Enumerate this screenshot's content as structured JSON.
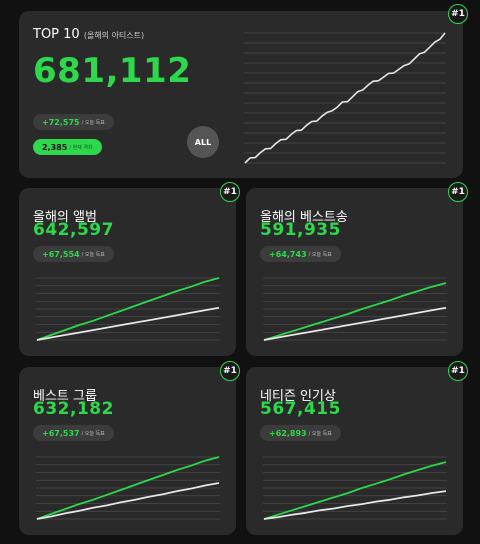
{
  "colors": {
    "accent": "#2ed84c",
    "card": "#2a2a2a",
    "background": "#111111",
    "line_white": "#e6e6e6"
  },
  "top": {
    "title": "TOP 10",
    "subtitle": "(올해의 아티스트)",
    "total": "681,112",
    "today_increase": "+72,575",
    "today_label": "/ 오늘 득표",
    "current_rank_value": "2,385",
    "current_rank_label": "/ 현재 격차",
    "all_button": "ALL",
    "rank_badge": "#1",
    "chart": {
      "type": "line",
      "series": [
        {
          "values": [
            0,
            3,
            5,
            8,
            10,
            12,
            15,
            17,
            19,
            22,
            24,
            26,
            29,
            31,
            33,
            36,
            38,
            41,
            43,
            46,
            48,
            51,
            54,
            57,
            60,
            62,
            64,
            66,
            68,
            70,
            72,
            74,
            77,
            80,
            83,
            86,
            89,
            92,
            96,
            100
          ]
        }
      ],
      "ylim": [
        0,
        100
      ]
    }
  },
  "cards": [
    {
      "title": "올해의 앨범",
      "total": "642,597",
      "today_increase": "+67,554",
      "today_label": "/ 오늘 득표",
      "rank_badge": "#1",
      "chart": {
        "type": "line",
        "ylim": [
          0,
          100
        ],
        "series": [
          {
            "color": "#2ed84c",
            "values": [
              0,
              8,
              16,
              24,
              31,
              39,
              47,
              55,
              63,
              71,
              79,
              86,
              94,
              100
            ]
          },
          {
            "color": "#e6e6e6",
            "values": [
              0,
              4,
              8,
              12,
              16,
              20,
              24,
              28,
              32,
              36,
              40,
              44,
              48,
              52
            ]
          }
        ]
      }
    },
    {
      "title": "올해의 베스트송",
      "total": "591,935",
      "today_increase": "+64,743",
      "today_label": "/ 오늘 득표",
      "rank_badge": "#1",
      "chart": {
        "type": "line",
        "ylim": [
          0,
          100
        ],
        "series": [
          {
            "color": "#2ed84c",
            "values": [
              0,
              7,
              14,
              21,
              28,
              35,
              42,
              50,
              57,
              64,
              72,
              79,
              86,
              92
            ]
          },
          {
            "color": "#e6e6e6",
            "values": [
              0,
              4,
              8,
              12,
              16,
              20,
              24,
              28,
              32,
              36,
              40,
              44,
              48,
              52
            ]
          }
        ]
      }
    },
    {
      "title": "베스트 그룹",
      "total": "632,182",
      "today_increase": "+67,537",
      "today_label": "/ 오늘 득표",
      "rank_badge": "#1",
      "chart": {
        "type": "line",
        "ylim": [
          0,
          100
        ],
        "series": [
          {
            "color": "#2ed84c",
            "values": [
              0,
              8,
              16,
              24,
              31,
              39,
              47,
              55,
              63,
              71,
              79,
              86,
              94,
              100
            ]
          },
          {
            "color": "#e6e6e6",
            "values": [
              0,
              4,
              9,
              13,
              18,
              22,
              27,
              31,
              36,
              40,
              45,
              49,
              54,
              58
            ]
          }
        ]
      }
    },
    {
      "title": "네티즌 인기상",
      "total": "567,415",
      "today_increase": "+62,893",
      "today_label": "/ 오늘 득표",
      "rank_badge": "#1",
      "chart": {
        "type": "line",
        "ylim": [
          0,
          100
        ],
        "series": [
          {
            "color": "#2ed84c",
            "values": [
              0,
              7,
              14,
              21,
              28,
              35,
              42,
              50,
              57,
              64,
              72,
              79,
              86,
              92
            ]
          },
          {
            "color": "#e6e6e6",
            "values": [
              0,
              3,
              7,
              10,
              14,
              17,
              21,
              24,
              28,
              31,
              35,
              38,
              42,
              45
            ]
          }
        ]
      }
    }
  ]
}
